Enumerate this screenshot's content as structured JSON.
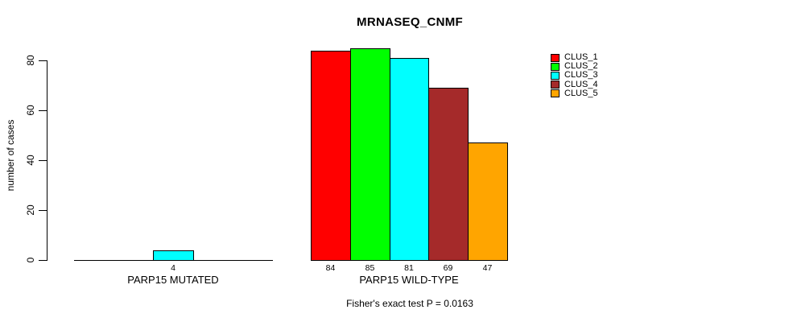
{
  "chart_data": {
    "type": "bar",
    "title": "MRNASEQ_CNMF",
    "ylabel": "number of cases",
    "yticks": [
      0,
      20,
      40,
      60,
      80
    ],
    "ylim": [
      0,
      85
    ],
    "grid": false,
    "legend_position": "right",
    "categories": [
      "PARP15 MUTATED",
      "PARP15 WILD-TYPE"
    ],
    "series": [
      {
        "name": "CLUS_1",
        "color": "#FF0000",
        "values": [
          0,
          84
        ]
      },
      {
        "name": "CLUS_2",
        "color": "#00FF00",
        "values": [
          0,
          85
        ]
      },
      {
        "name": "CLUS_3",
        "color": "#00FFFF",
        "values": [
          4,
          81
        ]
      },
      {
        "name": "CLUS_4",
        "color": "#A52A2A",
        "values": [
          0,
          69
        ]
      },
      {
        "name": "CLUS_5",
        "color": "#FFA500",
        "values": [
          0,
          47
        ]
      }
    ],
    "bar_label_rule": "value shown under bar only when value > 0",
    "caption": "Fisher's exact test P = 0.0163",
    "axis_color": "#000000",
    "background_color": "#FFFFFF"
  }
}
